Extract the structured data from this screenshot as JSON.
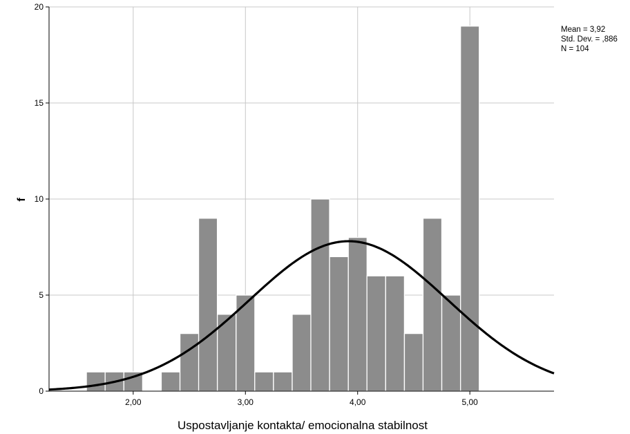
{
  "chart_data": {
    "type": "bar",
    "title": "",
    "xlabel": "Uspostavljanje kontakta/ emocionalna stabilnost",
    "ylabel": "f",
    "xlim": [
      1.25,
      5.75
    ],
    "ylim": [
      0,
      20
    ],
    "grid": true,
    "x_ticks": [
      2,
      3,
      4,
      5
    ],
    "x_tick_labels": [
      "2,00",
      "3,00",
      "4,00",
      "5,00"
    ],
    "y_ticks": [
      0,
      5,
      10,
      15,
      20
    ],
    "y_tick_labels": [
      "0",
      "5",
      "10",
      "15",
      "20"
    ],
    "bin_width": 0.16667,
    "bins_start": [
      1.583,
      1.75,
      1.917,
      2.083,
      2.25,
      2.417,
      2.583,
      2.75,
      2.917,
      3.083,
      3.25,
      3.417,
      3.583,
      3.75,
      3.917,
      4.083,
      4.25,
      4.417,
      4.583,
      4.75,
      4.917
    ],
    "values": [
      1,
      1,
      1,
      0,
      1,
      3,
      9,
      4,
      5,
      1,
      1,
      4,
      10,
      7,
      8,
      6,
      6,
      3,
      9,
      5,
      19
    ],
    "bar_color": "#8c8c8c",
    "normal_curve": {
      "mean": 3.92,
      "std": 0.886,
      "n": 104
    },
    "legend_position": "top-right",
    "stats": {
      "mean": "Mean = 3,92",
      "std": "Std. Dev. = ,886",
      "n": "N = 104"
    }
  }
}
